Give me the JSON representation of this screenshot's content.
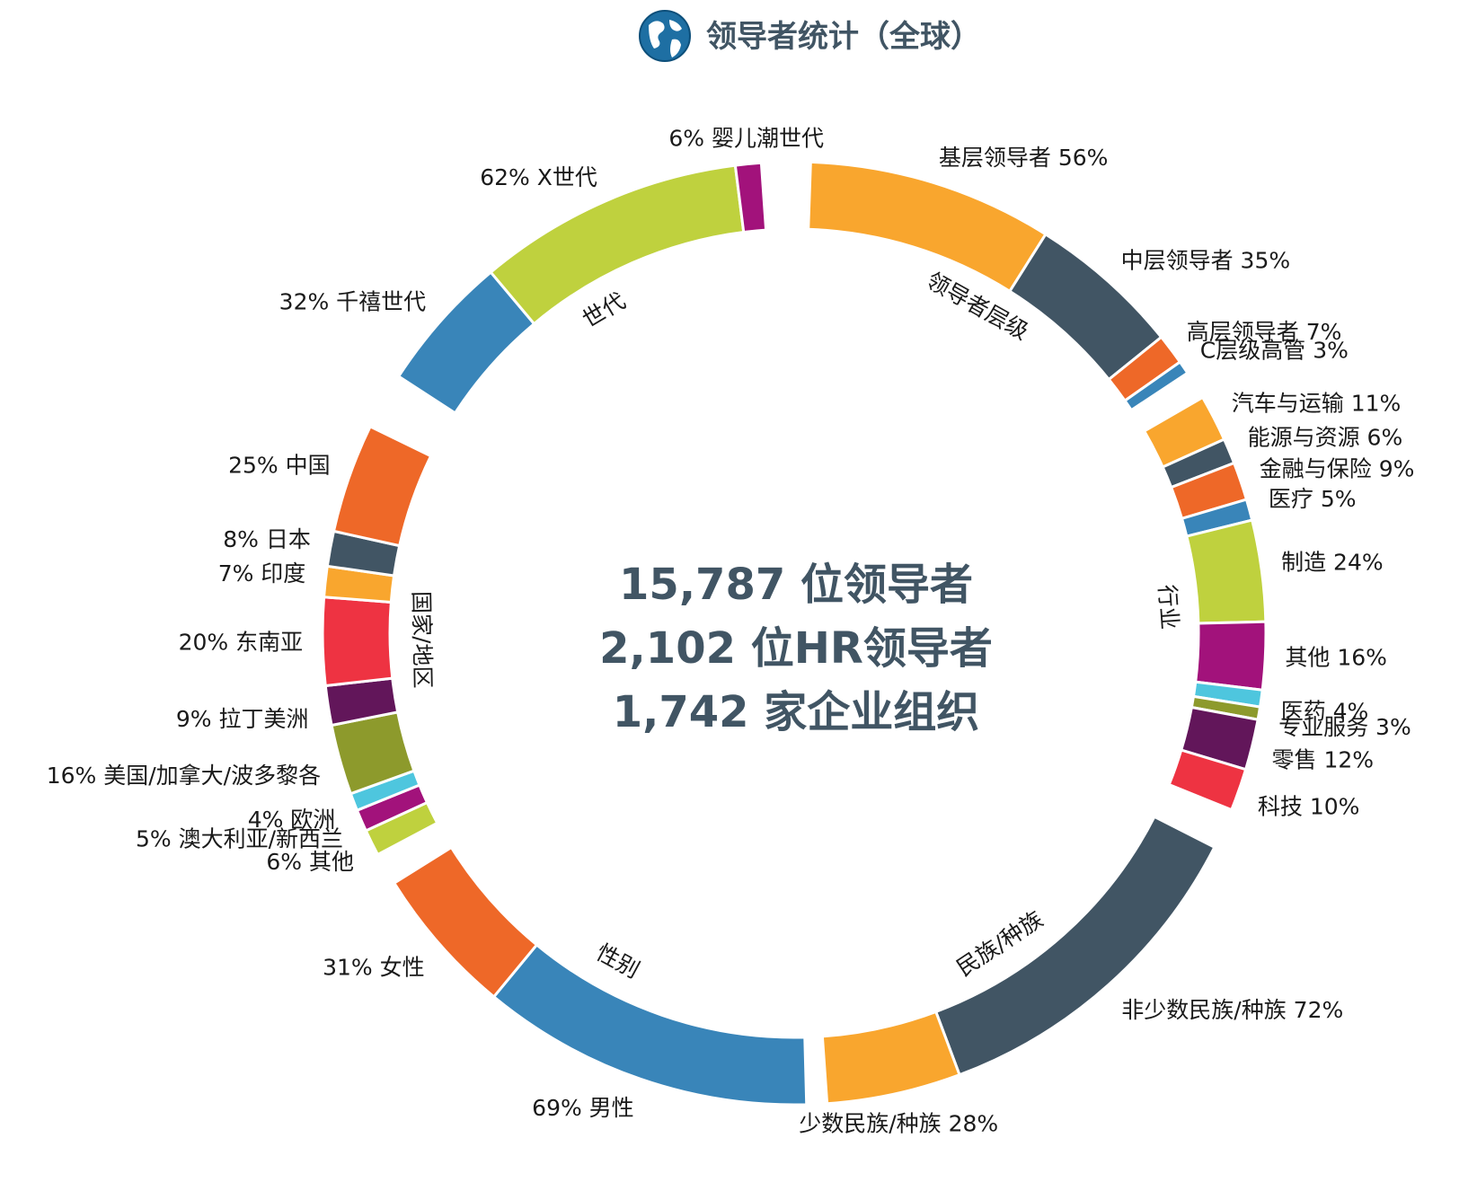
{
  "title": "领导者统计（全球）",
  "globe_icon": "globe-icon",
  "center": {
    "line1": "15,787 位领导者",
    "line2": "2,102 位HR领导者",
    "line3": "1,742 家企业组织"
  },
  "chart_data": {
    "type": "donut",
    "title": "领导者统计（全球）",
    "groups": [
      {
        "name": "领导者层级",
        "segments": [
          {
            "label": "基层领导者 56%",
            "value": 56,
            "color": "#F9A62E"
          },
          {
            "label": "中层领导者 35%",
            "value": 35,
            "color": "#415564"
          },
          {
            "label": "高层领导者 7%",
            "value": 7,
            "color": "#EE6828"
          },
          {
            "label": "C层级高管 3%",
            "value": 3,
            "color": "#3985B9"
          }
        ]
      },
      {
        "name": "行业",
        "segments": [
          {
            "label": "汽车与运输 11%",
            "value": 11,
            "color": "#F9A62E"
          },
          {
            "label": "能源与资源 6%",
            "value": 6,
            "color": "#415564"
          },
          {
            "label": "金融与保险 9%",
            "value": 9,
            "color": "#EE6828"
          },
          {
            "label": "医疗 5%",
            "value": 5,
            "color": "#3985B9"
          },
          {
            "label": "制造 24%",
            "value": 24,
            "color": "#BFD13E"
          },
          {
            "label": "其他 16%",
            "value": 16,
            "color": "#A2127B"
          },
          {
            "label": "医药 4%",
            "value": 4,
            "color": "#4EC6DE"
          },
          {
            "label": "专业服务 3%",
            "value": 3,
            "color": "#8D9A2C"
          },
          {
            "label": "零售 12%",
            "value": 12,
            "color": "#62165A"
          },
          {
            "label": "科技 10%",
            "value": 10,
            "color": "#EE3342"
          }
        ]
      },
      {
        "name": "民族/种族",
        "segments": [
          {
            "label": "非少数民族/种族 72%",
            "value": 72,
            "color": "#415564"
          },
          {
            "label": "少数民族/种族 28%",
            "value": 28,
            "color": "#F9A62E"
          }
        ]
      },
      {
        "name": "性别",
        "segments": [
          {
            "label": "69% 男性",
            "value": 69,
            "color": "#3985B9"
          },
          {
            "label": "31% 女性",
            "value": 31,
            "color": "#EE6828"
          }
        ]
      },
      {
        "name": "国家/地区",
        "segments": [
          {
            "label": "6% 其他",
            "value": 6,
            "color": "#BFD13E"
          },
          {
            "label": "5% 澳大利亚/新西兰",
            "value": 5,
            "color": "#A2127B"
          },
          {
            "label": "4% 欧洲",
            "value": 4,
            "color": "#4EC6DE"
          },
          {
            "label": "16% 美国/加拿大/波多黎各",
            "value": 16,
            "color": "#8D9A2C"
          },
          {
            "label": "9% 拉丁美洲",
            "value": 9,
            "color": "#62165A"
          },
          {
            "label": "20% 东南亚",
            "value": 20,
            "color": "#EE3342"
          },
          {
            "label": "7% 印度",
            "value": 7,
            "color": "#F9A62E"
          },
          {
            "label": "8% 日本",
            "value": 8,
            "color": "#415564"
          },
          {
            "label": "25% 中国",
            "value": 25,
            "color": "#EE6828"
          }
        ]
      },
      {
        "name": "世代",
        "segments": [
          {
            "label": "32% 千禧世代",
            "value": 32,
            "color": "#3985B9"
          },
          {
            "label": "62% X世代",
            "value": 62,
            "color": "#BFD13E"
          },
          {
            "label": "6% 婴儿潮世代",
            "value": 6,
            "color": "#A2127B"
          }
        ]
      }
    ]
  }
}
